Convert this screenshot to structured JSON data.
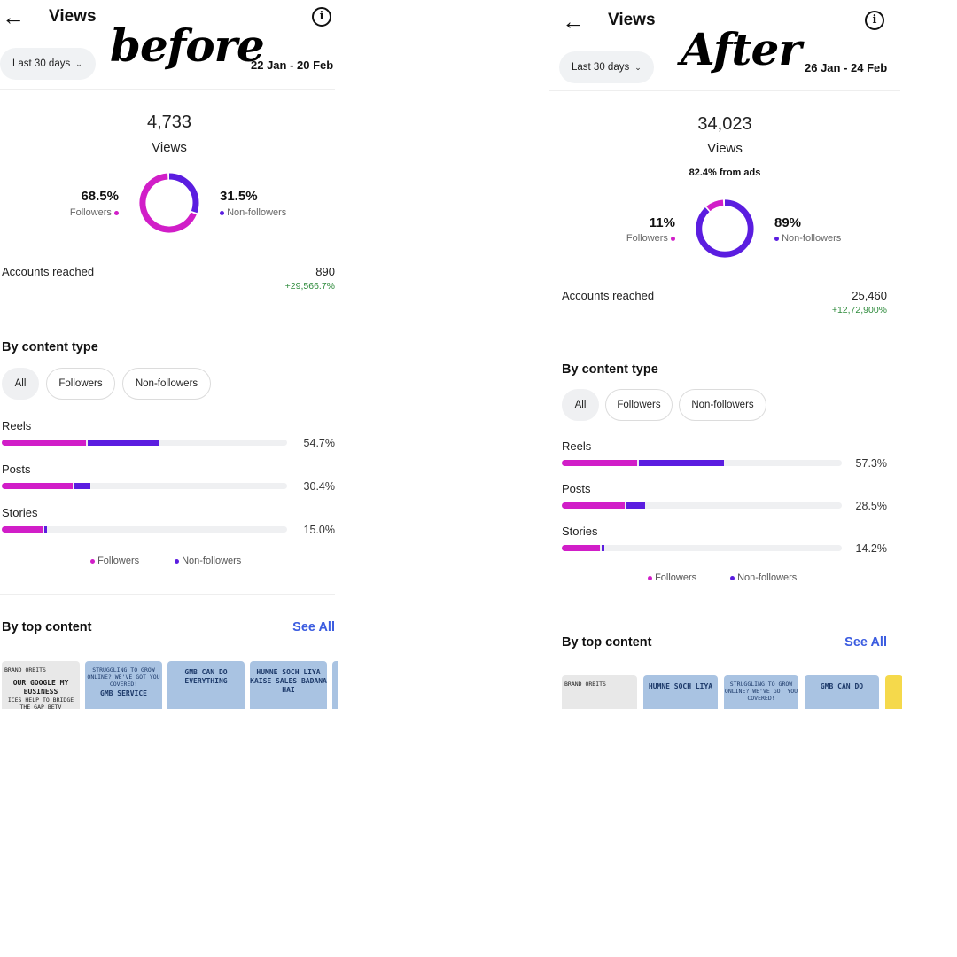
{
  "panels": {
    "before": {
      "annotation": "before",
      "title": "Views",
      "range_label": "Last 30 days",
      "date_range": "22 Jan - 20 Feb",
      "views_total": "4,733",
      "views_label": "Views",
      "followers_pct": "68.5%",
      "followers_label": "Followers",
      "nonfollowers_pct": "31.5%",
      "nonfollowers_label": "Non-followers",
      "followers_share": 0.685,
      "accounts_label": "Accounts reached",
      "accounts_value": "890",
      "accounts_change": "+29,566.7%",
      "content_type_title": "By content type",
      "chips": [
        "All",
        "Followers",
        "Non-followers"
      ],
      "rows": [
        {
          "label": "Reels",
          "pct": "54.7%",
          "followers_fill": 0.295,
          "nonfollowers_fill": 0.252
        },
        {
          "label": "Posts",
          "pct": "30.4%",
          "followers_fill": 0.248,
          "nonfollowers_fill": 0.056
        },
        {
          "label": "Stories",
          "pct": "15.0%",
          "followers_fill": 0.142,
          "nonfollowers_fill": 0.008
        }
      ],
      "legend_followers": "Followers",
      "legend_nonfollowers": "Non-followers",
      "top_content_title": "By top content",
      "see_all": "See All",
      "thumbs": [
        {
          "style": "grey",
          "top": "BRAND ORBITS",
          "main": "OUR GOOGLE MY BUSINESS",
          "bottom": "ICES HELP TO BRIDGE THE GAP BETV"
        },
        {
          "style": "blue",
          "top": "STRUGGLING TO GROW ONLINE? WE'VE GOT YOU COVERED!",
          "main": "GMB SERVICE",
          "bottom": ""
        },
        {
          "style": "blue",
          "top": "",
          "main": "GMB CAN DO EVERYTHING",
          "bottom": ""
        },
        {
          "style": "blue",
          "top": "",
          "main": "HUMNE SOCH LIYA KAISE SALES BADANA HAI",
          "bottom": ""
        },
        {
          "style": "blue",
          "top": "",
          "main": "",
          "bottom": ""
        }
      ]
    },
    "after": {
      "annotation": "After",
      "title": "Views",
      "range_label": "Last 30 days",
      "date_range": "26 Jan - 24 Feb",
      "views_total": "34,023",
      "views_label": "Views",
      "ads_note": "82.4% from ads",
      "followers_pct": "11%",
      "followers_label": "Followers",
      "nonfollowers_pct": "89%",
      "nonfollowers_label": "Non-followers",
      "followers_share": 0.11,
      "accounts_label": "Accounts reached",
      "accounts_value": "25,460",
      "accounts_change": "+12,72,900%",
      "content_type_title": "By content type",
      "chips": [
        "All",
        "Followers",
        "Non-followers"
      ],
      "rows": [
        {
          "label": "Reels",
          "pct": "57.3%",
          "followers_fill": 0.27,
          "nonfollowers_fill": 0.305
        },
        {
          "label": "Posts",
          "pct": "28.5%",
          "followers_fill": 0.225,
          "nonfollowers_fill": 0.065
        },
        {
          "label": "Stories",
          "pct": "14.2%",
          "followers_fill": 0.135,
          "nonfollowers_fill": 0.008
        }
      ],
      "legend_followers": "Followers",
      "legend_nonfollowers": "Non-followers",
      "top_content_title": "By top content",
      "see_all": "See All",
      "thumbs": [
        {
          "style": "grey",
          "top": "BRAND ORBITS",
          "main": "",
          "bottom": ""
        },
        {
          "style": "blue",
          "top": "",
          "main": "HUMNE SOCH LIYA",
          "bottom": ""
        },
        {
          "style": "blue",
          "top": "STRUGGLING TO GROW ONLINE? WE'VE GOT YOU COVERED!",
          "main": "",
          "bottom": ""
        },
        {
          "style": "blue",
          "top": "",
          "main": "GMB CAN DO",
          "bottom": ""
        },
        {
          "style": "yellow",
          "top": "",
          "main": "",
          "bottom": ""
        }
      ]
    }
  },
  "colors": {
    "followers": "#d11ec8",
    "nonfollowers": "#5b1de0",
    "positive_change": "#2e8b3c",
    "link": "#3b5ce0"
  },
  "icons": {
    "back": "arrow-left-icon",
    "info": "info-circle-icon",
    "dropdown": "chevron-down-icon"
  }
}
